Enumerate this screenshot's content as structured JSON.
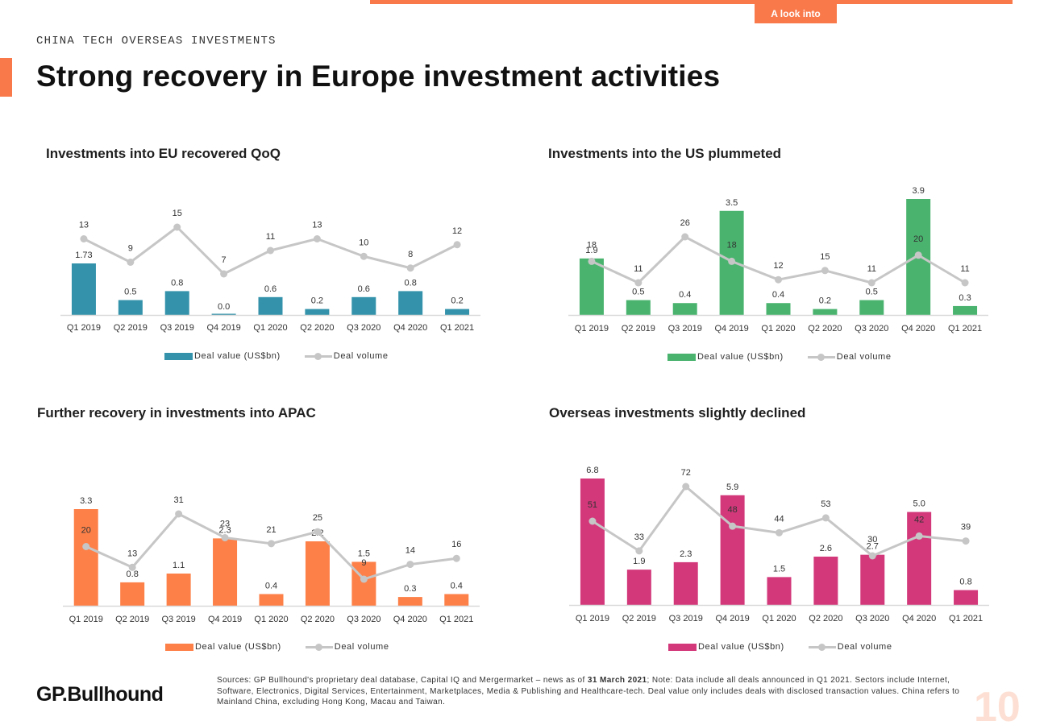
{
  "header": {
    "tab_label": "A look into",
    "section": "CHINA TECH OVERSEAS INVESTMENTS",
    "title": "Strong recovery in Europe investment activities"
  },
  "colors": {
    "eu": "#3493ab",
    "us": "#4ab46f",
    "apac": "#fd8048",
    "overseas": "#d3387b",
    "line": "#c6c6c6",
    "accent": "#f9794a"
  },
  "chart_data": [
    {
      "id": "eu",
      "type": "bar",
      "title": "Investments into EU recovered QoQ",
      "categories": [
        "Q1 2019",
        "Q2 2019",
        "Q3 2019",
        "Q4 2019",
        "Q1 2020",
        "Q2 2020",
        "Q3 2020",
        "Q4 2020",
        "Q1 2021"
      ],
      "series": [
        {
          "name": "Deal value (US$bn)",
          "values": [
            1.73,
            0.5,
            0.8,
            0.0,
            0.6,
            0.2,
            0.6,
            0.8,
            0.2
          ],
          "labels": [
            "1.73",
            "0.5",
            "0.8",
            "0.0",
            "0.6",
            "0.2",
            "0.6",
            "0.8",
            "0.2"
          ]
        },
        {
          "name": "Deal volume",
          "type": "line",
          "values": [
            13,
            9,
            15,
            7,
            11,
            13,
            10,
            8,
            12
          ]
        }
      ],
      "legend": [
        "Deal value (US$bn)",
        "Deal volume"
      ]
    },
    {
      "id": "us",
      "type": "bar",
      "title": "Investments into the US plummeted",
      "categories": [
        "Q1 2019",
        "Q2 2019",
        "Q3 2019",
        "Q4 2019",
        "Q1 2020",
        "Q2 2020",
        "Q3 2020",
        "Q4 2020",
        "Q1 2021"
      ],
      "series": [
        {
          "name": "Deal value (US$bn)",
          "values": [
            1.9,
            0.5,
            0.4,
            3.5,
            0.4,
            0.2,
            0.5,
            3.9,
            0.3
          ],
          "labels": [
            "1.9",
            "0.5",
            "0.4",
            "3.5",
            "0.4",
            "0.2",
            "0.5",
            "3.9",
            "0.3"
          ]
        },
        {
          "name": "Deal volume",
          "type": "line",
          "values": [
            18,
            11,
            26,
            18,
            12,
            15,
            11,
            20,
            11
          ]
        }
      ],
      "legend": [
        "Deal value (US$bn)",
        "Deal volume"
      ]
    },
    {
      "id": "apac",
      "type": "bar",
      "title": "Further recovery in investments into APAC",
      "categories": [
        "Q1 2019",
        "Q2 2019",
        "Q3 2019",
        "Q4 2019",
        "Q1 2020",
        "Q2 2020",
        "Q3 2020",
        "Q4 2020",
        "Q1 2021"
      ],
      "series": [
        {
          "name": "Deal value (US$bn)",
          "values": [
            3.3,
            0.8,
            1.1,
            2.3,
            0.4,
            2.2,
            1.5,
            0.3,
            0.4
          ],
          "labels": [
            "3.3",
            "0.8",
            "1.1",
            "2.3",
            "0.4",
            "2.2",
            "1.5",
            "0.3",
            "0.4"
          ]
        },
        {
          "name": "Deal volume",
          "type": "line",
          "values": [
            20,
            13,
            31,
            23,
            21,
            25,
            9,
            14,
            16
          ]
        }
      ],
      "legend": [
        "Deal value (US$bn)",
        "Deal volume"
      ]
    },
    {
      "id": "overseas",
      "type": "bar",
      "title": "Overseas investments slightly declined",
      "categories": [
        "Q1 2019",
        "Q2 2019",
        "Q3 2019",
        "Q4 2019",
        "Q1 2020",
        "Q2 2020",
        "Q3 2020",
        "Q4 2020",
        "Q1 2021"
      ],
      "series": [
        {
          "name": "Deal value (US$bn)",
          "values": [
            6.8,
            1.9,
            2.3,
            5.9,
            1.5,
            2.6,
            2.7,
            5.0,
            0.8
          ],
          "labels": [
            "6.8",
            "1.9",
            "2.3",
            "5.9",
            "1.5",
            "2.6",
            "2.7",
            "5.0",
            "0.8"
          ]
        },
        {
          "name": "Deal volume",
          "type": "line",
          "values": [
            51,
            33,
            72,
            48,
            44,
            53,
            30,
            42,
            39
          ]
        }
      ],
      "legend": [
        "Deal value (US$bn)",
        "Deal volume"
      ]
    }
  ],
  "footer": {
    "logo": "GP.Bullhound",
    "sources_prefix": "Sources: GP Bullhound's proprietary deal database, Capital IQ and Mergermarket – news as of ",
    "sources_date": "31 March 2021",
    "sources_suffix": "; Note: Data include all deals announced in Q1 2021. Sectors include Internet, Software, Electronics, Digital Services, Entertainment, Marketplaces, Media & Publishing and Healthcare-tech. Deal value only includes deals with disclosed transaction values. China refers to Mainland China, excluding Hong Kong, Macau and Taiwan.",
    "page_number": "10"
  }
}
